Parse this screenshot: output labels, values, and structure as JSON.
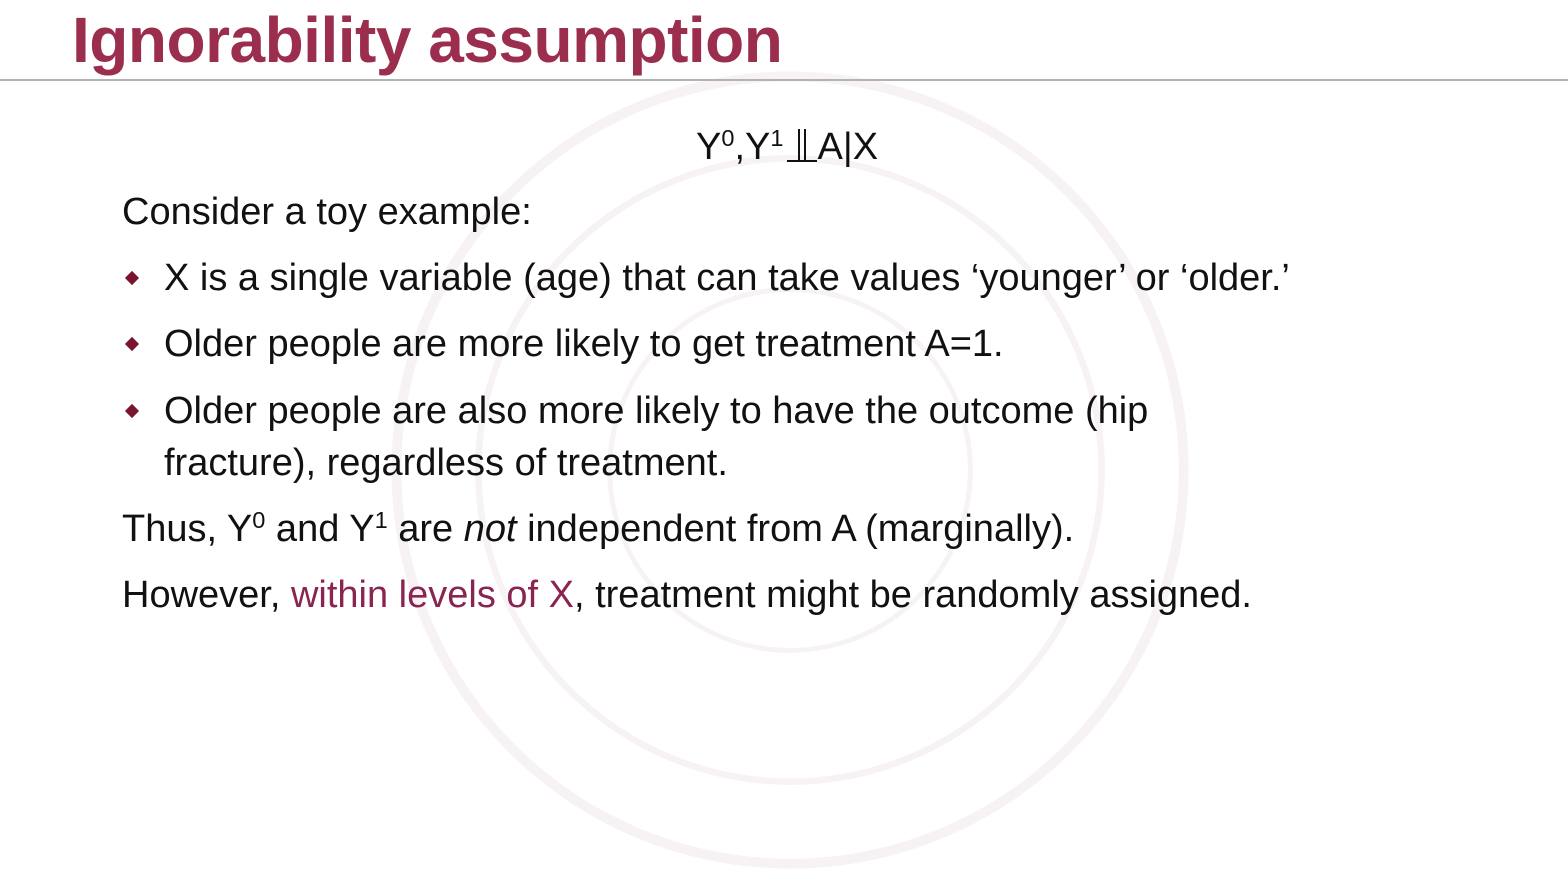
{
  "slide": {
    "title": "Ignorability assumption",
    "formula": {
      "y0_base": "Y",
      "y0_sup": "0",
      "comma": ",",
      "y1_base": "Y",
      "y1_sup": "1",
      "rest": "A|X"
    },
    "intro": "Consider a toy example:",
    "bullets": [
      {
        "text": "X is a single variable (age) that can take values ‘younger’ or ‘older.’"
      },
      {
        "text": "Older people are more likely to get treatment A=1."
      },
      {
        "text": "Older people are also more likely to have the outcome (hip fracture), regardless of treatment."
      }
    ],
    "thus": {
      "t1": "Thus, Y",
      "sup1": "0",
      "t2": " and Y",
      "sup2": "1",
      "t3": " are ",
      "emph": "not",
      "t4": " independent from A (marginally)."
    },
    "however": {
      "before": "However, ",
      "highlight": "within levels of X",
      "after": ", treatment might be randomly assigned."
    }
  },
  "colors": {
    "title": "#9b2d4d",
    "bullet": "#7a1530",
    "highlight": "#8a2450",
    "rule": "#b3b3b3"
  },
  "icons": {
    "bullet": "diamond-bullet-icon",
    "independence": "independence-symbol-icon"
  }
}
